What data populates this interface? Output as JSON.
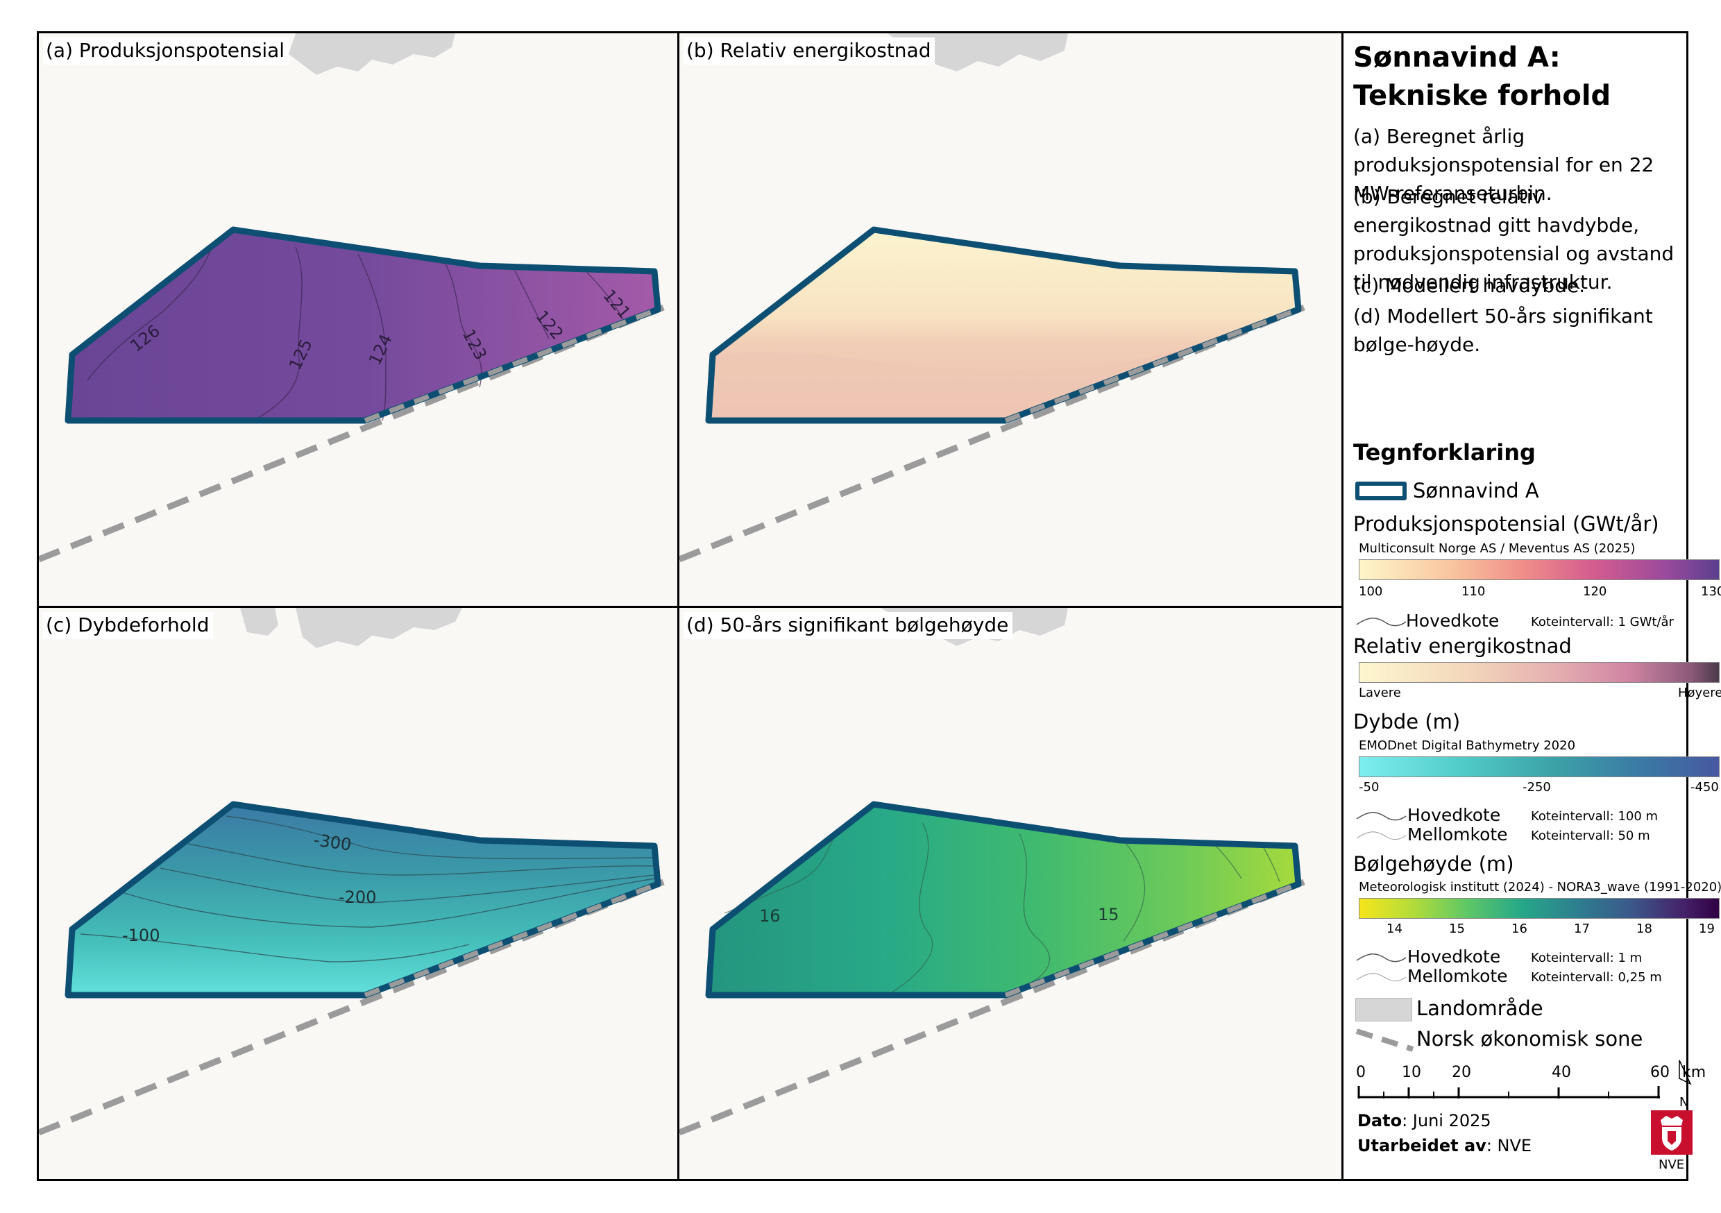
{
  "panels": {
    "a": {
      "title": "(a) Produksjonspotensial",
      "labels": [
        "126",
        "125",
        "124",
        "123",
        "122",
        "121"
      ]
    },
    "b": {
      "title": "(b) Relativ energikostnad"
    },
    "c": {
      "title": "(c) Dybdeforhold",
      "labels": [
        "-300",
        "-200",
        "-100"
      ]
    },
    "d": {
      "title": "(d) 50-års signifikant bølgehøyde",
      "labels": [
        "16",
        "15"
      ]
    }
  },
  "sidebar": {
    "title_line1": "Sønnavind A:",
    "title_line2": "Tekniske forhold",
    "desc_a": "(a) Beregnet årlig produksjonspotensial for en 22 MW-referanseturbin.",
    "desc_b": "(b) Beregnet relativ energikostnad gitt havdybde, produksjonspotensial og avstand til nødvendig infrastruktur.",
    "desc_c": "(c) Modellert havdybde.",
    "desc_d": "(d) Modellert 50-års signifikant bølge-høyde.",
    "legend_heading": "Tegnforklaring",
    "area_label": "Sønnavind A",
    "prod": {
      "label": "Produksjonspotensial (GWt/år)",
      "source": "Multiconsult Norge AS / Meventus AS (2025)",
      "ticks": [
        "100",
        "110",
        "120",
        "130"
      ],
      "hovedkote": "Hovedkote",
      "interval": "Koteintervall: 1 GWt/år"
    },
    "cost": {
      "label": "Relativ energikostnad",
      "low": "Lavere",
      "high": "Høyere"
    },
    "depth": {
      "label": "Dybde (m)",
      "source": "EMODnet Digital Bathymetry 2020",
      "ticks": [
        "-50",
        "-250",
        "-450"
      ],
      "hovedkote": "Hovedkote",
      "mellomkote": "Mellomkote",
      "interval_main": "Koteintervall: 100 m",
      "interval_mid": "Koteintervall: 50 m"
    },
    "wave": {
      "label": "Bølgehøyde (m)",
      "source": "Meteorologisk institutt (2024) - NORA3_wave (1991-2020)",
      "ticks": [
        "14",
        "15",
        "16",
        "17",
        "18",
        "19"
      ],
      "hovedkote": "Hovedkote",
      "mellomkote": "Mellomkote",
      "interval_main": "Koteintervall: 1 m",
      "interval_mid": "Koteintervall: 0,25 m"
    },
    "land_label": "Landområde",
    "zone_label": "Norsk økonomisk sone",
    "scale": {
      "ticks": [
        "0",
        "10",
        "20",
        "40",
        "60"
      ],
      "unit": "km",
      "north": "N"
    },
    "date_label": "Dato",
    "date_value": ": Juni 2025",
    "author_label": "Utarbeidet av",
    "author_value": ": NVE",
    "logo_text": "NVE"
  },
  "colors": {
    "outline": "#0d4f73",
    "zone": "#9b9b9b",
    "land": "#d6d6d6",
    "prod_ramp": [
      "#fdf5c9",
      "#f9c6a0",
      "#f09089",
      "#d45c8f",
      "#9b4a9c",
      "#5b3f8e"
    ],
    "cost_ramp": [
      "#fdf7cf",
      "#f3d7bb",
      "#e5aeb0",
      "#cf85a2",
      "#8d5a7a",
      "#4a3a49"
    ],
    "depth_ramp": [
      "#7ceef0",
      "#4fc9c5",
      "#3ba0a7",
      "#3b77a4",
      "#4858a0"
    ],
    "wave_ramp": [
      "#f6e51c",
      "#b2dc3a",
      "#5ec766",
      "#26a889",
      "#2d7f8e",
      "#3b5a8c",
      "#45226a",
      "#300043"
    ]
  }
}
